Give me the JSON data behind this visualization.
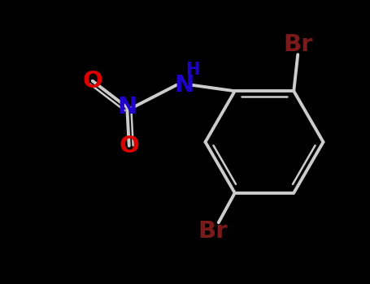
{
  "background_color": "#000000",
  "bond_color": "#cccccc",
  "N_color": "#2200cc",
  "O_color": "#dd0000",
  "Br_color": "#7a1a1a",
  "H_color": "#2200cc",
  "figsize": [
    4.55,
    3.5
  ],
  "dpi": 100,
  "xlim": [
    0,
    9.1
  ],
  "ylim": [
    0,
    7.0
  ]
}
